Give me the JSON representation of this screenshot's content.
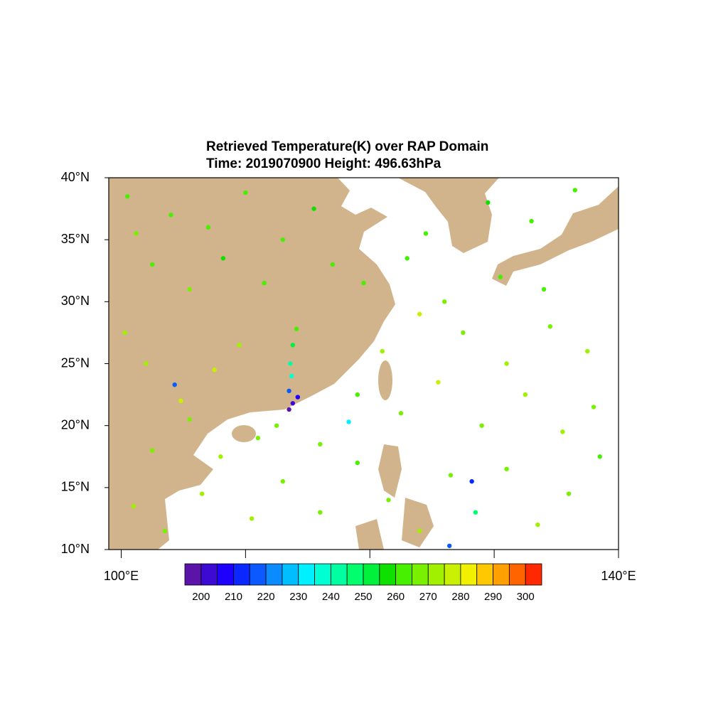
{
  "chart_data": {
    "type": "scatter",
    "title": "Retrieved Temperature(K) over RAP Domain",
    "subtitle": "Time: 2019070900  Height: 496.63hPa",
    "xlim": [
      99,
      140
    ],
    "ylim": [
      10,
      40
    ],
    "xticks": [
      {
        "value": 100,
        "label": "100°E"
      },
      {
        "value": 110,
        "label": null
      },
      {
        "value": 120,
        "label": null
      },
      {
        "value": 130,
        "label": null
      },
      {
        "value": 140,
        "label": "140°E"
      }
    ],
    "yticks": [
      {
        "value": 10,
        "label": "10°N"
      },
      {
        "value": 15,
        "label": "15°N"
      },
      {
        "value": 20,
        "label": "20°N"
      },
      {
        "value": 25,
        "label": "25°N"
      },
      {
        "value": 30,
        "label": "30°N"
      },
      {
        "value": 35,
        "label": "35°N"
      },
      {
        "value": 40,
        "label": "40°N"
      }
    ],
    "x": [
      113.5,
      113.8,
      114.2,
      113.5,
      113.7,
      113.6,
      113.8,
      114.1,
      104.3,
      128.2,
      126.4,
      118.3,
      100.5,
      101.2,
      102.5,
      104.0,
      105.5,
      107.0,
      108.2,
      110.0,
      111.5,
      113.0,
      115.5,
      117.0,
      100.3,
      102.0,
      104.8,
      107.5,
      109.5,
      102.5,
      105.5,
      108.0,
      111.0,
      101.0,
      103.5,
      106.5,
      110.5,
      113.0,
      116.0,
      119.0,
      121.5,
      124.0,
      126.5,
      128.5,
      131.0,
      133.5,
      136.0,
      138.5,
      122.5,
      125.5,
      129.0,
      132.5,
      135.5,
      138.0,
      121.0,
      124.0,
      127.5,
      131.0,
      134.5,
      137.5,
      119.5,
      123.0,
      126.0,
      130.5,
      134.0,
      112.5,
      116.0,
      119.0,
      129.5,
      133.0,
      136.5,
      124.5
    ],
    "y": [
      21.3,
      21.8,
      22.3,
      22.8,
      24.0,
      25.0,
      26.5,
      27.8,
      23.3,
      15.5,
      10.3,
      20.3,
      38.5,
      35.5,
      33.0,
      37.0,
      31.0,
      36.0,
      33.5,
      38.8,
      31.5,
      35.0,
      37.5,
      33.0,
      27.5,
      25.0,
      22.0,
      24.5,
      26.5,
      18.0,
      20.5,
      17.5,
      19.0,
      13.5,
      11.5,
      14.5,
      12.5,
      15.5,
      13.0,
      17.0,
      14.0,
      11.5,
      16.0,
      13.0,
      16.5,
      12.0,
      14.5,
      17.5,
      21.0,
      23.5,
      20.0,
      22.5,
      19.5,
      21.5,
      26.0,
      29.0,
      27.5,
      25.0,
      28.0,
      26.0,
      31.5,
      33.5,
      30.0,
      32.0,
      31.0,
      20.0,
      18.5,
      22.5,
      38.0,
      36.5,
      39.0,
      35.5
    ],
    "values": [
      198,
      200,
      205,
      215,
      235,
      240,
      250,
      262,
      215,
      212,
      215,
      232,
      262,
      268,
      262,
      260,
      265,
      262,
      258,
      262,
      260,
      262,
      258,
      262,
      270,
      272,
      278,
      275,
      270,
      268,
      266,
      270,
      268,
      270,
      268,
      272,
      270,
      266,
      268,
      264,
      266,
      270,
      268,
      245,
      266,
      270,
      268,
      264,
      268,
      275,
      266,
      270,
      272,
      266,
      270,
      275,
      268,
      272,
      266,
      270,
      264,
      262,
      266,
      262,
      260,
      268,
      266,
      262,
      258,
      260,
      262,
      262
    ],
    "colorbar": {
      "levels": [
        200,
        205,
        210,
        215,
        220,
        225,
        230,
        235,
        240,
        245,
        250,
        255,
        260,
        265,
        270,
        275,
        280,
        285,
        290,
        295,
        300
      ],
      "colors": [
        "#5a14a8",
        "#3c0ad2",
        "#1e00ff",
        "#0a28ff",
        "#0a5aff",
        "#0a8cff",
        "#00beff",
        "#00f0ff",
        "#00ffd2",
        "#00ffa0",
        "#00ff6e",
        "#00f03c",
        "#10e000",
        "#46f000",
        "#78f000",
        "#a0f000",
        "#c8f000",
        "#f0f000",
        "#ffc800",
        "#ffa000",
        "#ff6400",
        "#ff2800"
      ],
      "labels": [
        200,
        210,
        220,
        230,
        240,
        250,
        260,
        270,
        280,
        290,
        300
      ]
    }
  }
}
